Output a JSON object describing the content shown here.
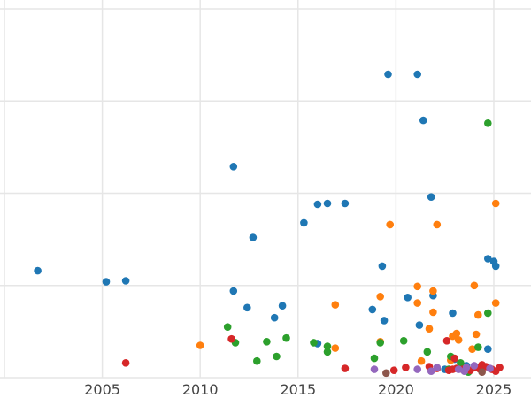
{
  "chart_data": {
    "type": "scatter",
    "title": "",
    "xlabel": "",
    "ylabel": "",
    "xlim": [
      2000.0,
      2026.9
    ],
    "ylim": [
      0,
      40
    ],
    "x_ticks": [
      2005,
      2010,
      2015,
      2020,
      2025
    ],
    "x_tick_labels": [
      "2005",
      "2010",
      "2015",
      "2020",
      "2025"
    ],
    "y_gridlines": [
      0,
      10,
      20,
      30,
      40
    ],
    "grid": true,
    "legend": "none",
    "series": [
      {
        "name": "blue",
        "color": "#1f77b4",
        "points": [
          [
            2001.7,
            11.6
          ],
          [
            2005.2,
            10.4
          ],
          [
            2006.2,
            10.5
          ],
          [
            2011.7,
            22.9
          ],
          [
            2011.7,
            9.4
          ],
          [
            2012.4,
            7.6
          ],
          [
            2012.7,
            15.2
          ],
          [
            2013.8,
            6.5
          ],
          [
            2014.2,
            7.8
          ],
          [
            2015.3,
            16.8
          ],
          [
            2016.0,
            18.8
          ],
          [
            2016.5,
            18.9
          ],
          [
            2017.4,
            18.9
          ],
          [
            2019.6,
            32.9
          ],
          [
            2021.1,
            32.9
          ],
          [
            2021.4,
            27.9
          ],
          [
            2021.8,
            19.6
          ],
          [
            2019.3,
            12.1
          ],
          [
            2020.6,
            8.7
          ],
          [
            2018.8,
            7.4
          ],
          [
            2019.4,
            6.2
          ],
          [
            2021.2,
            5.7
          ],
          [
            2021.9,
            8.9
          ],
          [
            2022.9,
            7.0
          ],
          [
            2024.7,
            12.9
          ],
          [
            2025.0,
            12.6
          ],
          [
            2025.1,
            12.1
          ],
          [
            2016.0,
            3.7
          ],
          [
            2024.7,
            3.1
          ],
          [
            2023.0,
            2.0
          ],
          [
            2024.4,
            1.0
          ],
          [
            2022.5,
            0.9
          ],
          [
            2023.6,
            1.3
          ]
        ]
      },
      {
        "name": "orange",
        "color": "#ff7f0e",
        "points": [
          [
            2010.0,
            3.5
          ],
          [
            2016.9,
            3.2
          ],
          [
            2016.9,
            7.9
          ],
          [
            2019.2,
            8.8
          ],
          [
            2019.7,
            16.6
          ],
          [
            2021.1,
            9.9
          ],
          [
            2021.1,
            8.1
          ],
          [
            2021.9,
            9.4
          ],
          [
            2022.1,
            16.6
          ],
          [
            2021.9,
            7.1
          ],
          [
            2021.7,
            5.3
          ],
          [
            2022.9,
            4.5
          ],
          [
            2023.1,
            4.8
          ],
          [
            2023.2,
            4.1
          ],
          [
            2024.0,
            10.0
          ],
          [
            2024.2,
            6.8
          ],
          [
            2024.1,
            4.7
          ],
          [
            2025.1,
            18.9
          ],
          [
            2025.1,
            8.1
          ],
          [
            2022.8,
            1.9
          ],
          [
            2021.3,
            1.8
          ],
          [
            2023.4,
            1.2
          ],
          [
            2023.9,
            3.1
          ],
          [
            2019.2,
            3.9
          ]
        ]
      },
      {
        "name": "green",
        "color": "#2ca02c",
        "points": [
          [
            2011.4,
            5.5
          ],
          [
            2011.8,
            3.8
          ],
          [
            2012.9,
            1.8
          ],
          [
            2013.4,
            3.9
          ],
          [
            2013.9,
            2.3
          ],
          [
            2014.4,
            4.3
          ],
          [
            2015.8,
            3.8
          ],
          [
            2016.5,
            3.4
          ],
          [
            2016.5,
            2.8
          ],
          [
            2018.9,
            2.1
          ],
          [
            2019.2,
            3.8
          ],
          [
            2020.4,
            4.0
          ],
          [
            2021.6,
            2.8
          ],
          [
            2022.8,
            2.3
          ],
          [
            2024.2,
            3.3
          ],
          [
            2024.7,
            7.0
          ],
          [
            2024.7,
            27.6
          ],
          [
            2023.3,
            1.6
          ],
          [
            2022.7,
            0.9
          ],
          [
            2023.7,
            0.6
          ]
        ]
      },
      {
        "name": "red",
        "color": "#d62728",
        "points": [
          [
            2006.2,
            1.6
          ],
          [
            2011.6,
            4.2
          ],
          [
            2017.4,
            1.0
          ],
          [
            2019.9,
            0.8
          ],
          [
            2020.5,
            1.1
          ],
          [
            2021.7,
            1.2
          ],
          [
            2022.1,
            1.0
          ],
          [
            2022.6,
            4.0
          ],
          [
            2022.7,
            0.8
          ],
          [
            2022.9,
            0.9
          ],
          [
            2023.1,
            1.0
          ],
          [
            2023.4,
            0.9
          ],
          [
            2023.8,
            0.8
          ],
          [
            2024.1,
            1.1
          ],
          [
            2024.3,
            0.9
          ],
          [
            2024.6,
            1.2
          ],
          [
            2024.9,
            0.9
          ],
          [
            2025.1,
            0.7
          ],
          [
            2025.3,
            1.1
          ],
          [
            2023.0,
            2.1
          ],
          [
            2024.4,
            1.4
          ]
        ]
      },
      {
        "name": "purple",
        "color": "#9467bd",
        "points": [
          [
            2018.9,
            0.9
          ],
          [
            2021.1,
            0.9
          ],
          [
            2021.8,
            0.7
          ],
          [
            2022.1,
            1.1
          ],
          [
            2023.2,
            0.9
          ],
          [
            2023.6,
            1.1
          ],
          [
            2024.0,
            1.3
          ],
          [
            2024.8,
            1.0
          ],
          [
            2023.5,
            0.7
          ]
        ]
      },
      {
        "name": "brown",
        "color": "#8c564b",
        "points": [
          [
            2019.5,
            0.5
          ],
          [
            2024.4,
            0.6
          ]
        ]
      }
    ]
  }
}
